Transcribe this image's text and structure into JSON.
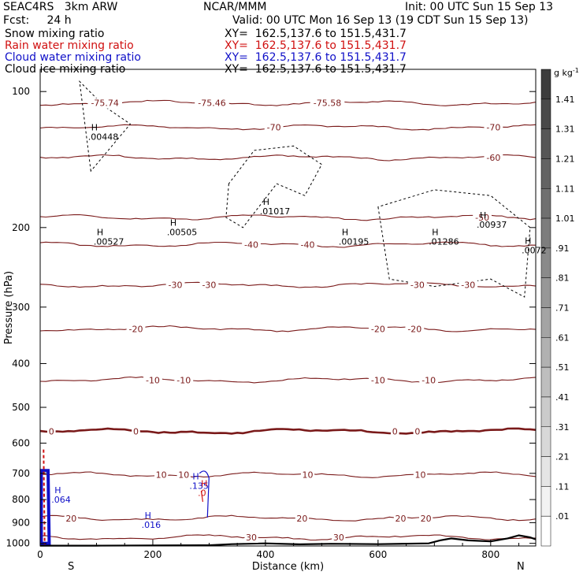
{
  "header": {
    "model": "SEAC4RS   3km ARW",
    "forecast": "Fcst:     24 h",
    "org": "NCAR/MMM",
    "init": "Init: 00 UTC Sun 15 Sep 13",
    "valid": "Valid: 00 UTC Mon 16 Sep 13 (19 CDT Sun 15 Sep 13)",
    "fields": [
      {
        "name": "Snow mixing ratio",
        "xy": "XY=  162.5,137.6 to 151.5,431.7",
        "color": "#000000"
      },
      {
        "name": "Rain water mixing ratio",
        "xy": "XY=  162.5,137.6 to 151.5,431.7",
        "color": "#d01010"
      },
      {
        "name": "Cloud water mixing ratio",
        "xy": "XY=  162.5,137.6 to 151.5,431.7",
        "color": "#1010c8"
      },
      {
        "name": "Cloud ice mixing ratio",
        "xy": "XY=  162.5,137.6 to 151.5,431.7",
        "color": "#000000"
      }
    ]
  },
  "chart_data": {
    "type": "contour",
    "xlabel": "Distance (km)",
    "ylabel": "Pressure (hPa)",
    "xlim": [
      0,
      880
    ],
    "ylim": [
      1000,
      100
    ],
    "y_scale": "log",
    "x_ticks": [
      0,
      200,
      400,
      600,
      800
    ],
    "y_ticks": [
      100,
      200,
      300,
      400,
      500,
      600,
      700,
      800,
      900,
      1000
    ],
    "x_ends": [
      "S",
      "N"
    ],
    "temperature_contours": [
      {
        "level": -76,
        "p": 106,
        "labels": [
          {
            "x": 115,
            "text": "-75.74"
          },
          {
            "x": 305,
            "text": "-75.46"
          },
          {
            "x": 510,
            "text": "-75.58"
          }
        ]
      },
      {
        "level": -70,
        "p": 120,
        "labels": [
          {
            "x": 415,
            "text": "-70"
          },
          {
            "x": 805,
            "text": "-70"
          }
        ]
      },
      {
        "level": -60,
        "p": 140,
        "labels": [
          {
            "x": 805,
            "text": "-60"
          }
        ]
      },
      {
        "level": -50,
        "p": 190,
        "labels": [
          {
            "x": 785,
            "text": "-50"
          }
        ]
      },
      {
        "level": -40,
        "p": 218,
        "labels": [
          {
            "x": 375,
            "text": "-40"
          },
          {
            "x": 475,
            "text": "-40"
          }
        ]
      },
      {
        "level": -30,
        "p": 268,
        "labels": [
          {
            "x": 240,
            "text": "-30"
          },
          {
            "x": 300,
            "text": "-30"
          },
          {
            "x": 670,
            "text": "-30"
          },
          {
            "x": 760,
            "text": "-30"
          }
        ]
      },
      {
        "level": -20,
        "p": 335,
        "labels": [
          {
            "x": 170,
            "text": "-20"
          },
          {
            "x": 600,
            "text": "-20"
          },
          {
            "x": 665,
            "text": "-20"
          }
        ]
      },
      {
        "level": -10,
        "p": 435,
        "labels": [
          {
            "x": 200,
            "text": "-10"
          },
          {
            "x": 255,
            "text": "-10"
          },
          {
            "x": 600,
            "text": "-10"
          },
          {
            "x": 690,
            "text": "-10"
          }
        ]
      },
      {
        "level": 0,
        "p": 565,
        "labels": [
          {
            "x": 20,
            "text": "0"
          },
          {
            "x": 170,
            "text": "0"
          },
          {
            "x": 630,
            "text": "0"
          },
          {
            "x": 670,
            "text": "0"
          }
        ]
      },
      {
        "level": 10,
        "p": 705,
        "labels": [
          {
            "x": 215,
            "text": "10"
          },
          {
            "x": 255,
            "text": "10"
          },
          {
            "x": 475,
            "text": "10"
          },
          {
            "x": 675,
            "text": "10"
          }
        ]
      },
      {
        "level": 20,
        "p": 880,
        "labels": [
          {
            "x": 55,
            "text": "20"
          },
          {
            "x": 465,
            "text": "20"
          },
          {
            "x": 640,
            "text": "20"
          },
          {
            "x": 685,
            "text": "20"
          }
        ]
      },
      {
        "level": 30,
        "p": 970,
        "labels": [
          {
            "x": 375,
            "text": "30"
          },
          {
            "x": 530,
            "text": "30"
          }
        ]
      }
    ],
    "extrema_labels": [
      {
        "x": 85,
        "p": 128,
        "text": ".00448",
        "color": "#000000"
      },
      {
        "x": 95,
        "p": 218,
        "text": ".00527",
        "color": "#000000"
      },
      {
        "x": 225,
        "p": 208,
        "text": ".00505",
        "color": "#000000"
      },
      {
        "x": 390,
        "p": 187,
        "text": ".01017",
        "color": "#000000"
      },
      {
        "x": 530,
        "p": 218,
        "text": ".00195",
        "color": "#000000"
      },
      {
        "x": 690,
        "p": 218,
        "text": ".01286",
        "color": "#000000"
      },
      {
        "x": 775,
        "p": 200,
        "text": ".00937",
        "color": "#000000"
      },
      {
        "x": 855,
        "p": 228,
        "text": ".0072",
        "color": "#000000"
      },
      {
        "x": 265,
        "p": 757,
        "text": ".135",
        "color": "#1010c8"
      },
      {
        "x": 20,
        "p": 812,
        "text": ".064",
        "color": "#1010c8"
      },
      {
        "x": 180,
        "p": 925,
        "text": ".016",
        "color": "#1010c8"
      },
      {
        "x": 280,
        "p": 785,
        "text": ".0",
        "color": "#d01010"
      }
    ],
    "colorbar": {
      "unit": "g kg",
      "unit_sup": "-1",
      "ticks": [
        ".01",
        ".11",
        ".21",
        ".31",
        ".41",
        ".51",
        ".61",
        ".71",
        ".81",
        ".91",
        "1.01",
        "1.11",
        "1.21",
        "1.31",
        "1.41"
      ]
    }
  }
}
